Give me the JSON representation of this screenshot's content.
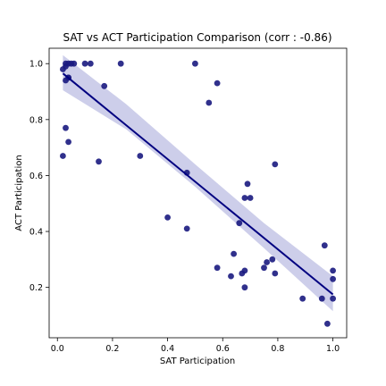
{
  "chart_data": {
    "type": "scatter",
    "title": "SAT vs ACT Participation Comparison (corr : -0.86)",
    "xlabel": "SAT Participation",
    "ylabel": "ACT Participation",
    "xlim": [
      -0.03,
      1.05
    ],
    "ylim": [
      0.02,
      1.055
    ],
    "xticks": [
      0.0,
      0.2,
      0.4,
      0.6,
      0.8,
      1.0
    ],
    "xtick_labels": [
      "0.0",
      "0.2",
      "0.4",
      "0.6",
      "0.8",
      "1.0"
    ],
    "yticks": [
      0.2,
      0.4,
      0.6,
      0.8,
      1.0
    ],
    "ytick_labels": [
      "0.2",
      "0.4",
      "0.6",
      "0.8",
      "1.0"
    ],
    "grid": false,
    "legend": "none",
    "colors": {
      "points": "#1a1a80",
      "regression_line": "#000080",
      "confidence_band": "#c4c6e6"
    },
    "points": {
      "x": [
        0.02,
        0.03,
        0.03,
        0.04,
        0.04,
        0.05,
        0.06,
        0.1,
        0.12,
        0.23,
        0.5,
        0.03,
        0.04,
        0.17,
        0.03,
        0.04,
        0.02,
        0.15,
        0.3,
        0.55,
        0.58,
        0.47,
        0.4,
        0.47,
        0.66,
        0.68,
        0.69,
        0.7,
        0.79,
        0.58,
        0.63,
        0.64,
        0.67,
        0.68,
        0.68,
        0.75,
        0.76,
        0.78,
        0.79,
        0.89,
        0.96,
        0.97,
        0.98,
        1.0,
        1.0,
        1.0
      ],
      "y": [
        0.98,
        1.0,
        0.99,
        1.0,
        0.95,
        1.0,
        1.0,
        1.0,
        1.0,
        1.0,
        1.0,
        0.94,
        0.95,
        0.92,
        0.77,
        0.72,
        0.67,
        0.65,
        0.67,
        0.86,
        0.93,
        0.61,
        0.45,
        0.41,
        0.43,
        0.52,
        0.57,
        0.52,
        0.64,
        0.27,
        0.24,
        0.32,
        0.25,
        0.26,
        0.2,
        0.27,
        0.29,
        0.3,
        0.25,
        0.16,
        0.16,
        0.35,
        0.07,
        0.26,
        0.23,
        0.16
      ]
    },
    "regression": {
      "x": [
        0.02,
        1.0
      ],
      "y": [
        0.965,
        0.175
      ],
      "ci": {
        "x": [
          0.02,
          0.25,
          0.5,
          0.75,
          1.0
        ],
        "lower": [
          0.905,
          0.765,
          0.56,
          0.34,
          0.115
        ],
        "upper": [
          1.03,
          0.855,
          0.64,
          0.43,
          0.24
        ]
      }
    }
  }
}
